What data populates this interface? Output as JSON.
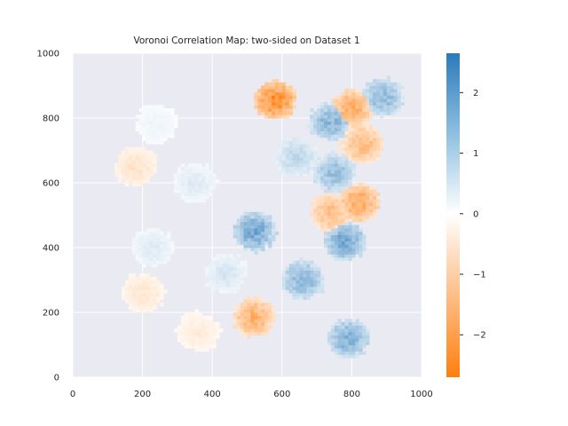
{
  "chart_data": {
    "type": "heatmap",
    "title": "Voronoi Correlation Map: two-sided on Dataset 1",
    "xlabel": "",
    "ylabel": "",
    "xlim": [
      0,
      1000
    ],
    "ylim": [
      0,
      1000
    ],
    "xticks": [
      "0",
      "200",
      "400",
      "600",
      "800",
      "1000"
    ],
    "yticks": [
      "0",
      "200",
      "400",
      "600",
      "800",
      "1000"
    ],
    "grid": true,
    "colorbar": {
      "range": [
        -2.7,
        2.65
      ],
      "ticks": [
        "2",
        "1",
        "0",
        "−1",
        "−2"
      ],
      "tick_values": [
        2,
        1,
        0,
        -1,
        -2
      ],
      "low_color": "#ff7f0e",
      "mid_color": "#ffffff",
      "high_color": "#2b7bba"
    },
    "clusters": [
      {
        "x": 580,
        "y": 855,
        "value": -2.4
      },
      {
        "x": 800,
        "y": 830,
        "value": -1.7
      },
      {
        "x": 830,
        "y": 720,
        "value": -1.4
      },
      {
        "x": 890,
        "y": 865,
        "value": 1.4
      },
      {
        "x": 740,
        "y": 790,
        "value": 1.5
      },
      {
        "x": 750,
        "y": 630,
        "value": 1.3
      },
      {
        "x": 820,
        "y": 540,
        "value": -1.8
      },
      {
        "x": 740,
        "y": 510,
        "value": -1.3
      },
      {
        "x": 780,
        "y": 420,
        "value": 1.7
      },
      {
        "x": 520,
        "y": 450,
        "value": 1.8
      },
      {
        "x": 640,
        "y": 680,
        "value": 0.8
      },
      {
        "x": 660,
        "y": 300,
        "value": 1.5
      },
      {
        "x": 790,
        "y": 120,
        "value": 1.6
      },
      {
        "x": 520,
        "y": 185,
        "value": -1.6
      },
      {
        "x": 440,
        "y": 320,
        "value": 0.5
      },
      {
        "x": 360,
        "y": 140,
        "value": -0.4
      },
      {
        "x": 230,
        "y": 400,
        "value": 0.4
      },
      {
        "x": 200,
        "y": 260,
        "value": -0.5
      },
      {
        "x": 240,
        "y": 780,
        "value": 0.2
      },
      {
        "x": 350,
        "y": 600,
        "value": 0.4
      },
      {
        "x": 180,
        "y": 650,
        "value": -0.6
      }
    ]
  }
}
